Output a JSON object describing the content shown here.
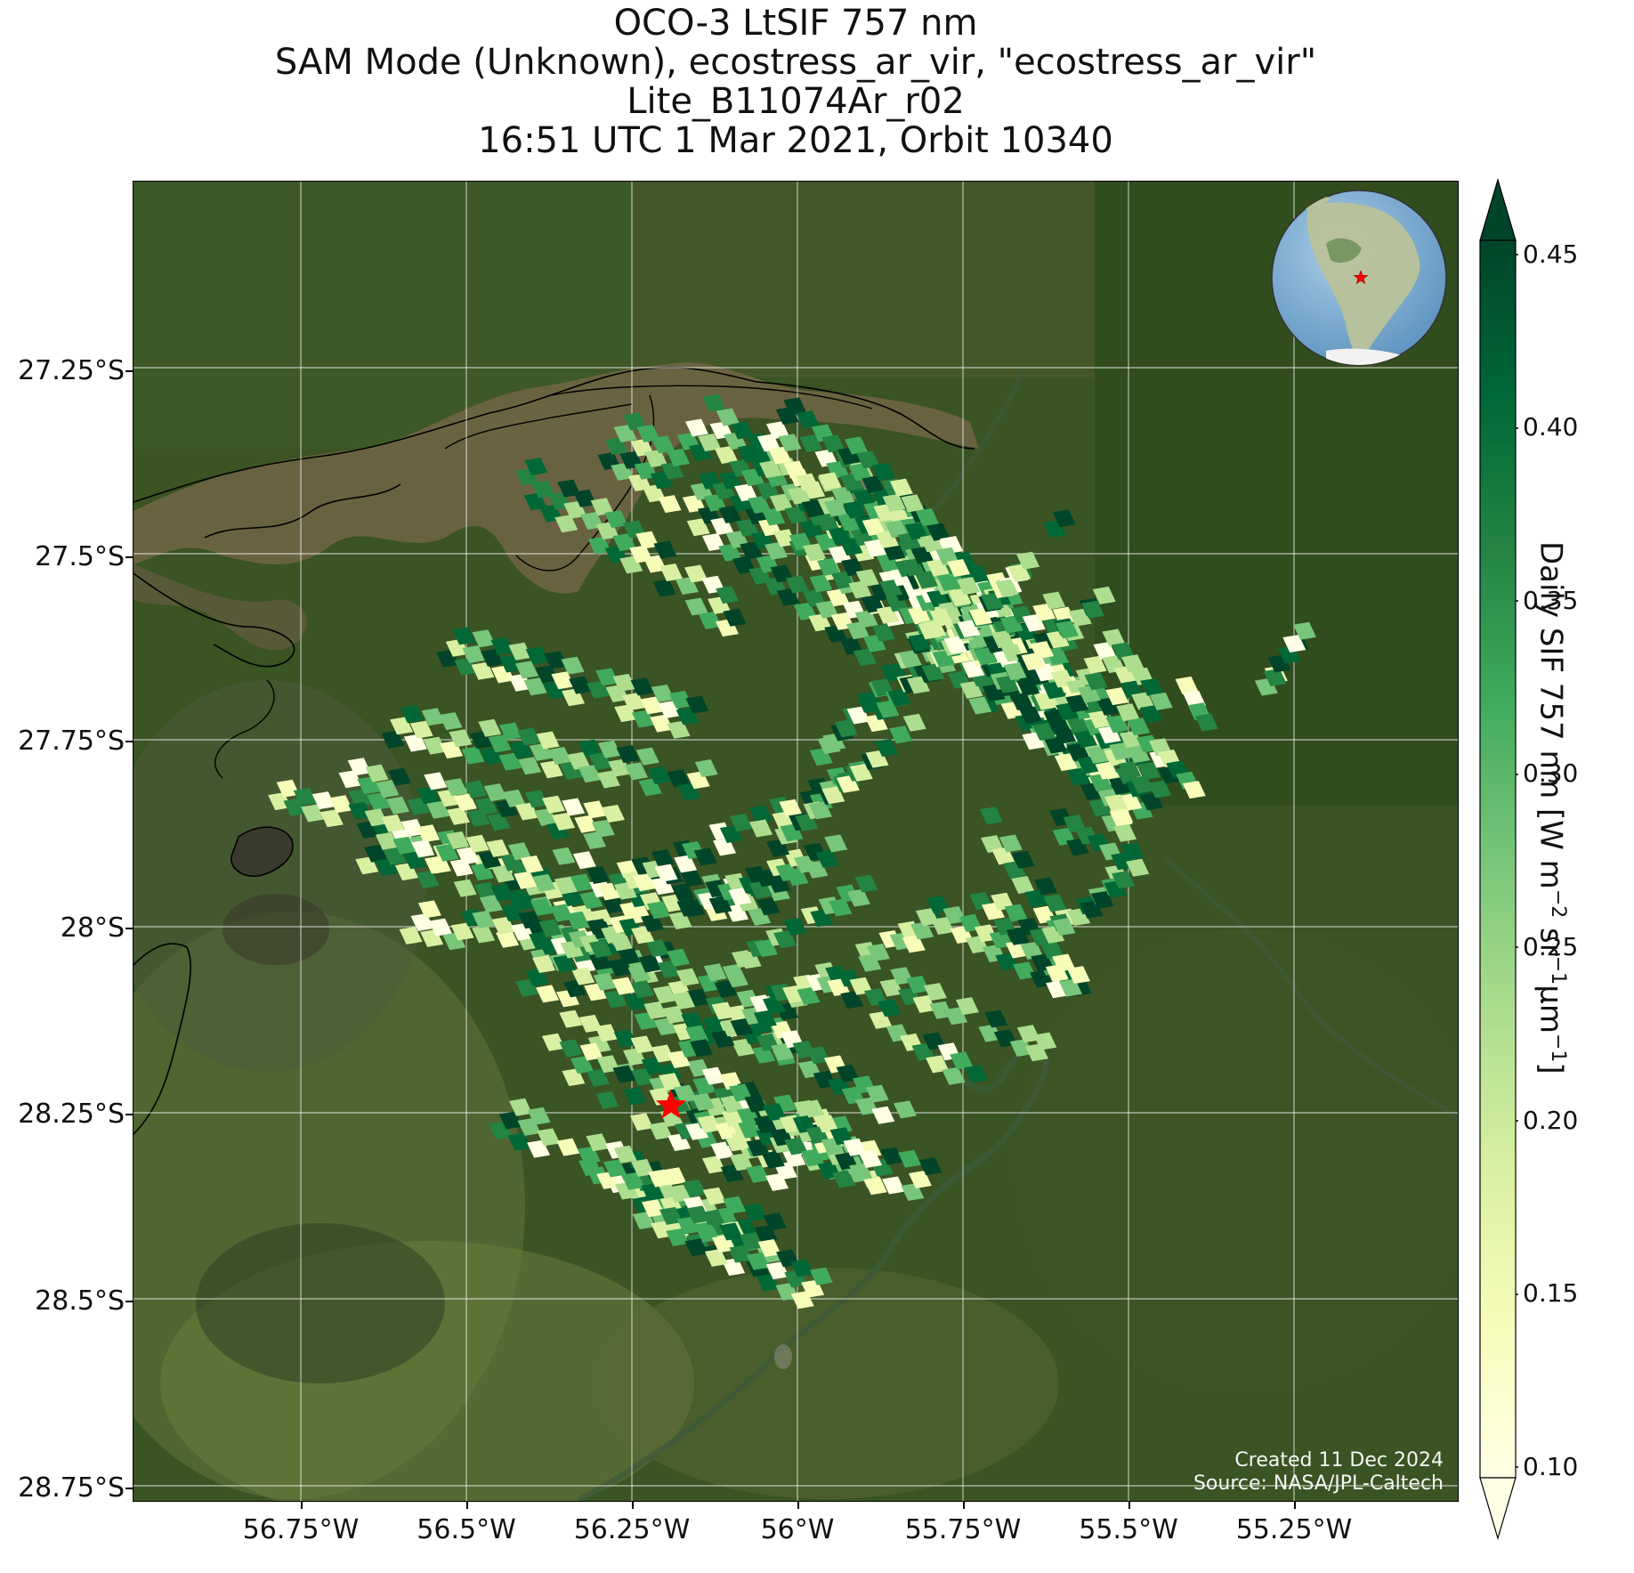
{
  "title": {
    "line1": "OCO-3 LtSIF 757 nm",
    "line2": "SAM Mode (Unknown), ecostress_ar_vir, \"ecostress_ar_vir\"",
    "line3": "Lite_B11074Ar_r02",
    "line4": "16:51 UTC 1 Mar 2021, Orbit 10340"
  },
  "axes": {
    "lat_ticks": [
      "27.25°S",
      "27.5°S",
      "27.75°S",
      "28°S",
      "28.25°S",
      "28.5°S",
      "28.75°S"
    ],
    "lon_ticks": [
      "56.75°W",
      "56.5°W",
      "56.25°W",
      "56°W",
      "55.75°W",
      "55.5°W",
      "55.25°W"
    ]
  },
  "credits": {
    "created": "Created 11 Dec 2024",
    "source": "Source: NASA/JPL-Caltech"
  },
  "colorbar": {
    "ticks": [
      "0.45",
      "0.40",
      "0.35",
      "0.30",
      "0.25",
      "0.20",
      "0.15",
      "0.10"
    ],
    "label_main": "Daily SIF 757 nm [W m",
    "label_exp1": "−2",
    "label_mid": " sr",
    "label_exp2": "−1",
    "label_mid2": "µm",
    "label_exp3": "−1",
    "label_end": "]",
    "min": 0.1,
    "max": 0.45,
    "colors": [
      "#ffffe5",
      "#f7fcb9",
      "#d9f0a3",
      "#addd8e",
      "#78c679",
      "#41ab5d",
      "#238443",
      "#006837",
      "#004529"
    ]
  },
  "target": {
    "marker": "red-star",
    "lat": "28.23°S",
    "lon": "56.17°W"
  },
  "map_colors": {
    "forest": "#34501f",
    "river": "#6e6444",
    "inset_ocean": "#7fb3d6"
  }
}
